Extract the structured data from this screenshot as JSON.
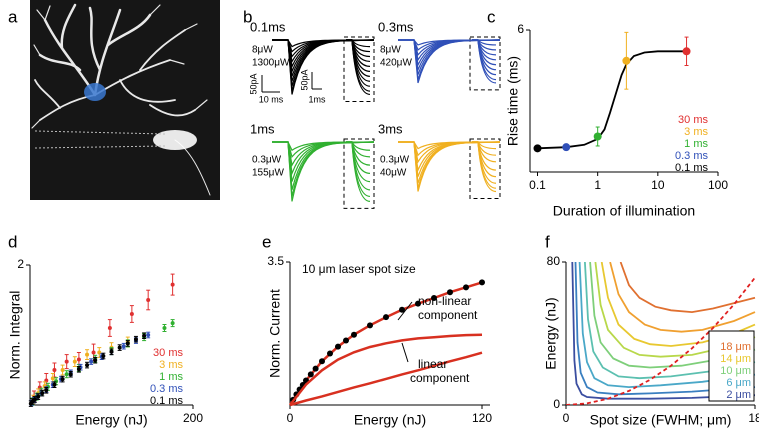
{
  "chart_data": [
    {
      "type": "image",
      "panel": "a"
    },
    {
      "type": "traces",
      "panel": "b",
      "subplots": [
        {
          "title": "0.1ms",
          "color": "#000000",
          "power_labels": [
            "8μW",
            "1300μW"
          ],
          "amplitudes": [
            20,
            35,
            50,
            65,
            80,
            95,
            110,
            125,
            140,
            155,
            165
          ]
        },
        {
          "title": "0.3ms",
          "color": "#3050b8",
          "power_labels": [
            "8μW",
            "420μW"
          ],
          "amplitudes": [
            15,
            30,
            45,
            60,
            75,
            90,
            105,
            120,
            130
          ]
        },
        {
          "title": "1ms",
          "color": "#30b030",
          "power_labels": [
            "0.3μW",
            "155μW"
          ],
          "amplitudes": [
            25,
            45,
            70,
            95,
            120,
            145,
            165,
            180
          ]
        },
        {
          "title": "3ms",
          "color": "#f0b020",
          "power_labels": [
            "0.3μW",
            "40μW"
          ],
          "amplitudes": [
            20,
            40,
            60,
            85,
            105,
            125,
            140,
            150
          ]
        }
      ],
      "scalebar_labels": [
        "50pA",
        "10 ms",
        "1ms",
        "50pA"
      ]
    },
    {
      "type": "line",
      "panel": "c",
      "xlabel": "Duration of illumination",
      "ylabel": "Rise time (ms)",
      "xlog": true,
      "xlim": [
        0.075,
        100
      ],
      "xticks": [
        0.1,
        1,
        10,
        100
      ],
      "ylim": [
        0,
        6
      ],
      "yticks": [
        6
      ],
      "series": [
        {
          "x": [
            0.1,
            0.3,
            1,
            3,
            30
          ],
          "values": [
            1.0,
            1.05,
            1.5,
            4.7,
            5.1
          ],
          "errors": [
            0.1,
            0.1,
            0.4,
            1.2,
            0.6
          ],
          "colors": [
            "#000000",
            "#3050b8",
            "#30b030",
            "#f0b020",
            "#e03030"
          ],
          "mode": "markers",
          "drawn_after": true
        },
        {
          "x": [
            0.1,
            0.3,
            0.6,
            1,
            1.3,
            1.6,
            2,
            2.5,
            3,
            4,
            6,
            10,
            30
          ],
          "values": [
            1.0,
            1.05,
            1.15,
            1.4,
            1.8,
            2.5,
            3.3,
            4.1,
            4.55,
            4.9,
            5.05,
            5.1,
            5.1
          ],
          "color": "#000000",
          "mode": "line"
        }
      ],
      "legend": "lower right",
      "legend_labels": [
        "30 ms",
        "3 ms",
        "1 ms",
        "0.3 ms",
        "0.1 ms"
      ],
      "legend_colors": [
        "#e03030",
        "#f0b020",
        "#30b030",
        "#3050b8",
        "#000000"
      ]
    },
    {
      "type": "scatter",
      "panel": "d",
      "xlabel": "Energy (nJ)",
      "ylabel": "Norm. Integral",
      "xlim": [
        0,
        200
      ],
      "xticks": [
        200
      ],
      "ylim": [
        0,
        2
      ],
      "yticks": [
        2
      ],
      "legend": "lower right",
      "series": [
        {
          "name": "30 ms",
          "color": "#e03030",
          "x": [
            5,
            12,
            20,
            30,
            45,
            60,
            78,
            98,
            125,
            145,
            175
          ],
          "values": [
            0.12,
            0.25,
            0.35,
            0.5,
            0.62,
            0.65,
            0.75,
            1.1,
            1.3,
            1.5,
            1.72
          ],
          "errors": [
            0.08,
            0.08,
            0.1,
            0.1,
            0.1,
            0.1,
            0.12,
            0.12,
            0.12,
            0.14,
            0.15
          ]
        },
        {
          "name": "3 ms",
          "color": "#f0b020",
          "x": [
            4,
            10,
            18,
            28,
            40,
            55,
            70,
            85,
            100,
            120
          ],
          "values": [
            0.08,
            0.17,
            0.27,
            0.38,
            0.5,
            0.62,
            0.72,
            0.75,
            0.82,
            0.9
          ],
          "errors": [
            0.06,
            0.06,
            0.06,
            0.07,
            0.07,
            0.07,
            0.07,
            0.07,
            0.07,
            0.07
          ]
        },
        {
          "name": "1 ms",
          "color": "#30b030",
          "x": [
            3,
            8,
            14,
            22,
            32,
            45,
            60,
            80,
            100,
            120,
            140,
            165,
            175
          ],
          "values": [
            0.05,
            0.12,
            0.19,
            0.26,
            0.34,
            0.44,
            0.53,
            0.66,
            0.77,
            0.88,
            0.97,
            1.1,
            1.17
          ],
          "errors": [
            0.05,
            0.05,
            0.05,
            0.05,
            0.05,
            0.05,
            0.05,
            0.05,
            0.05,
            0.05,
            0.05,
            0.05,
            0.05
          ]
        },
        {
          "name": "0.3 ms",
          "color": "#3050b8",
          "x": [
            2,
            5,
            9,
            14,
            20,
            28,
            38,
            50,
            62,
            75,
            88,
            100,
            115,
            130,
            145
          ],
          "values": [
            0.03,
            0.07,
            0.12,
            0.17,
            0.22,
            0.29,
            0.37,
            0.46,
            0.54,
            0.62,
            0.69,
            0.76,
            0.84,
            0.92,
            1.0
          ],
          "errors": [
            0.04,
            0.04,
            0.04,
            0.04,
            0.04,
            0.04,
            0.04,
            0.04,
            0.04,
            0.04,
            0.04,
            0.04,
            0.04,
            0.04,
            0.04
          ]
        },
        {
          "name": "0.1 ms",
          "color": "#000000",
          "x": [
            1,
            3,
            6,
            10,
            15,
            20,
            30,
            40,
            50,
            60,
            70,
            80,
            90,
            100,
            110,
            120,
            130,
            140
          ],
          "values": [
            0.02,
            0.05,
            0.08,
            0.12,
            0.17,
            0.21,
            0.29,
            0.37,
            0.44,
            0.51,
            0.57,
            0.64,
            0.7,
            0.76,
            0.82,
            0.88,
            0.94,
            0.99
          ],
          "errors": [
            0.04,
            0.04,
            0.04,
            0.04,
            0.04,
            0.04,
            0.04,
            0.04,
            0.04,
            0.04,
            0.04,
            0.04,
            0.04,
            0.04,
            0.04,
            0.04,
            0.04,
            0.04
          ]
        }
      ]
    },
    {
      "type": "line",
      "panel": "e",
      "title": "10 μm laser spot size",
      "xlabel": "Energy (nJ)",
      "ylabel": "Norm. Current",
      "xlim": [
        0,
        125
      ],
      "xticks": [
        0,
        120
      ],
      "ylim": [
        0,
        3.5
      ],
      "yticks": [
        3.5
      ],
      "annotations": [
        [
          "non-linear",
          "component"
        ],
        [
          "linear",
          "component"
        ]
      ],
      "series": [
        {
          "color": "#d83020",
          "mode": "line",
          "x": [
            0,
            10,
            20,
            30,
            40,
            50,
            60,
            70,
            80,
            90,
            100,
            110,
            120
          ],
          "values": [
            0,
            0.6,
            1.07,
            1.43,
            1.72,
            1.95,
            2.15,
            2.33,
            2.48,
            2.62,
            2.76,
            2.88,
            3.0
          ]
        },
        {
          "color": "#000000",
          "mode": "markers",
          "x": [
            2,
            4,
            6,
            8,
            10,
            13,
            16,
            20,
            25,
            30,
            35,
            40,
            50,
            60,
            70,
            80,
            90,
            100,
            110,
            120
          ],
          "values": [
            0.13,
            0.26,
            0.38,
            0.49,
            0.6,
            0.75,
            0.89,
            1.07,
            1.26,
            1.43,
            1.58,
            1.72,
            1.95,
            2.15,
            2.33,
            2.48,
            2.62,
            2.76,
            2.88,
            3.0
          ]
        },
        {
          "color": "#d83020",
          "mode": "line",
          "x": [
            0,
            10,
            20,
            30,
            40,
            50,
            60,
            70,
            80,
            90,
            100,
            110,
            120
          ],
          "values": [
            0,
            0.5,
            0.85,
            1.11,
            1.29,
            1.42,
            1.51,
            1.58,
            1.63,
            1.66,
            1.69,
            1.71,
            1.72
          ]
        },
        {
          "color": "#d83020",
          "mode": "line",
          "x": [
            0,
            10,
            20,
            30,
            40,
            50,
            60,
            70,
            80,
            90,
            100,
            110,
            120
          ],
          "values": [
            0,
            0.11,
            0.21,
            0.32,
            0.43,
            0.53,
            0.64,
            0.75,
            0.85,
            0.96,
            1.07,
            1.17,
            1.28
          ]
        }
      ]
    },
    {
      "type": "line",
      "panel": "f",
      "xlabel": "Spot size (FWHM; μm)",
      "ylabel": "Energy (nJ)",
      "xlim": [
        0,
        18
      ],
      "xticks": [
        0,
        18
      ],
      "ylim": [
        0,
        80
      ],
      "yticks": [
        0,
        80
      ],
      "legend": "lower right",
      "legend_frame": true,
      "series": [
        {
          "name": "18 μm",
          "color": "#e07030",
          "mode": "line",
          "x": [
            5.2,
            6,
            7,
            8.5,
            10,
            12,
            14,
            16,
            18
          ],
          "values": [
            80,
            67,
            60,
            55,
            53,
            52,
            54,
            57,
            60
          ]
        },
        {
          "color": "#f0a030",
          "mode": "line",
          "x": [
            4.2,
            5,
            6,
            7.5,
            9,
            11,
            13,
            16,
            18
          ],
          "values": [
            80,
            62,
            52,
            45,
            42,
            41,
            42,
            47,
            52
          ]
        },
        {
          "name": "14 μm",
          "color": "#e8c830",
          "mode": "line",
          "x": [
            3.4,
            4,
            5,
            6.5,
            8,
            10,
            13,
            16,
            18
          ],
          "values": [
            80,
            60,
            45,
            37,
            34,
            33,
            35,
            40,
            45
          ]
        },
        {
          "color": "#b8d84a",
          "mode": "line",
          "x": [
            2.8,
            3.3,
            4,
            5.5,
            7,
            9,
            12,
            15,
            18
          ],
          "values": [
            80,
            56,
            42,
            32,
            28,
            27,
            28,
            32,
            38
          ]
        },
        {
          "name": "10 μm",
          "color": "#7ecf7a",
          "mode": "line",
          "x": [
            2.3,
            2.7,
            3.3,
            4.5,
            6,
            8,
            11,
            15,
            18
          ],
          "values": [
            80,
            50,
            35,
            26,
            22,
            21,
            22,
            26,
            31
          ]
        },
        {
          "color": "#5cc0b0",
          "mode": "line",
          "x": [
            1.8,
            2.1,
            2.6,
            3.5,
            5,
            7,
            10,
            14,
            18
          ],
          "values": [
            80,
            48,
            30,
            21,
            16,
            15,
            16,
            19,
            24
          ]
        },
        {
          "name": "6 μm",
          "color": "#4aa8c8",
          "mode": "line",
          "x": [
            1.3,
            1.6,
            2,
            2.7,
            4,
            6,
            9,
            13,
            18
          ],
          "values": [
            80,
            40,
            24,
            15,
            11,
            10,
            11,
            13,
            17
          ]
        },
        {
          "color": "#3a7fc0",
          "mode": "line",
          "x": [
            0.9,
            1.1,
            1.4,
            2,
            3,
            5,
            8,
            12,
            18
          ],
          "values": [
            80,
            35,
            18,
            10,
            7,
            6,
            6.5,
            7.5,
            10
          ]
        },
        {
          "name": "2 μm",
          "color": "#3b4ea0",
          "mode": "line",
          "x": [
            0.6,
            0.8,
            1,
            1.5,
            2,
            4,
            8,
            12,
            18
          ],
          "values": [
            80,
            25,
            12,
            6,
            4.5,
            3.5,
            3.5,
            4,
            5.5
          ]
        },
        {
          "color": "#e02020",
          "mode": "line",
          "dash": true,
          "x": [
            0,
            2,
            4,
            6,
            8,
            10,
            12,
            14,
            16,
            18
          ],
          "values": [
            0,
            0.9,
            3.5,
            7.9,
            14.1,
            22,
            31.7,
            43.1,
            56.3,
            71.3
          ]
        }
      ]
    }
  ]
}
